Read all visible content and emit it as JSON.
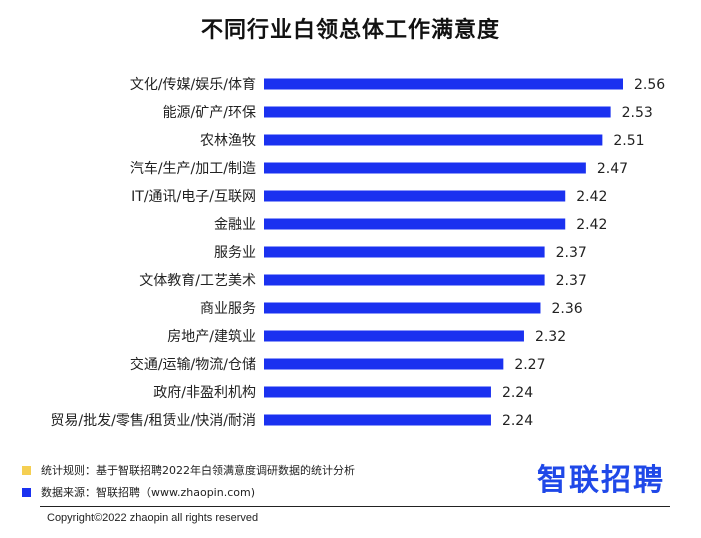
{
  "title": "不同行业白领总体工作满意度",
  "chart_data": {
    "type": "bar",
    "orientation": "horizontal",
    "title": "不同行业白领总体工作满意度",
    "categories": [
      "文化/传媒/娱乐/体育",
      "能源/矿产/环保",
      "农林渔牧",
      "汽车/生产/加工/制造",
      "IT/通讯/电子/互联网",
      "金融业",
      "服务业",
      "文体教育/工艺美术",
      "商业服务",
      "房地产/建筑业",
      "交通/运输/物流/仓储",
      "政府/非盈利机构",
      "贸易/批发/零售/租赁业/快消/耐消"
    ],
    "values": [
      2.56,
      2.53,
      2.51,
      2.47,
      2.42,
      2.42,
      2.37,
      2.37,
      2.36,
      2.32,
      2.27,
      2.24,
      2.24
    ],
    "bar_color": "#1a31f0",
    "grid": false
  },
  "legend": {
    "rule_text": "统计规则：基于智联招聘2022年白领满意度调研数据的统计分析",
    "rule_color": "#f5cf52",
    "source_text": "数据来源：智联招聘（www.zhaopin.com)",
    "source_color": "#1a31f0"
  },
  "brand": "智联招聘",
  "copyright": "Copyright©2022 zhaopin all rights reserved"
}
